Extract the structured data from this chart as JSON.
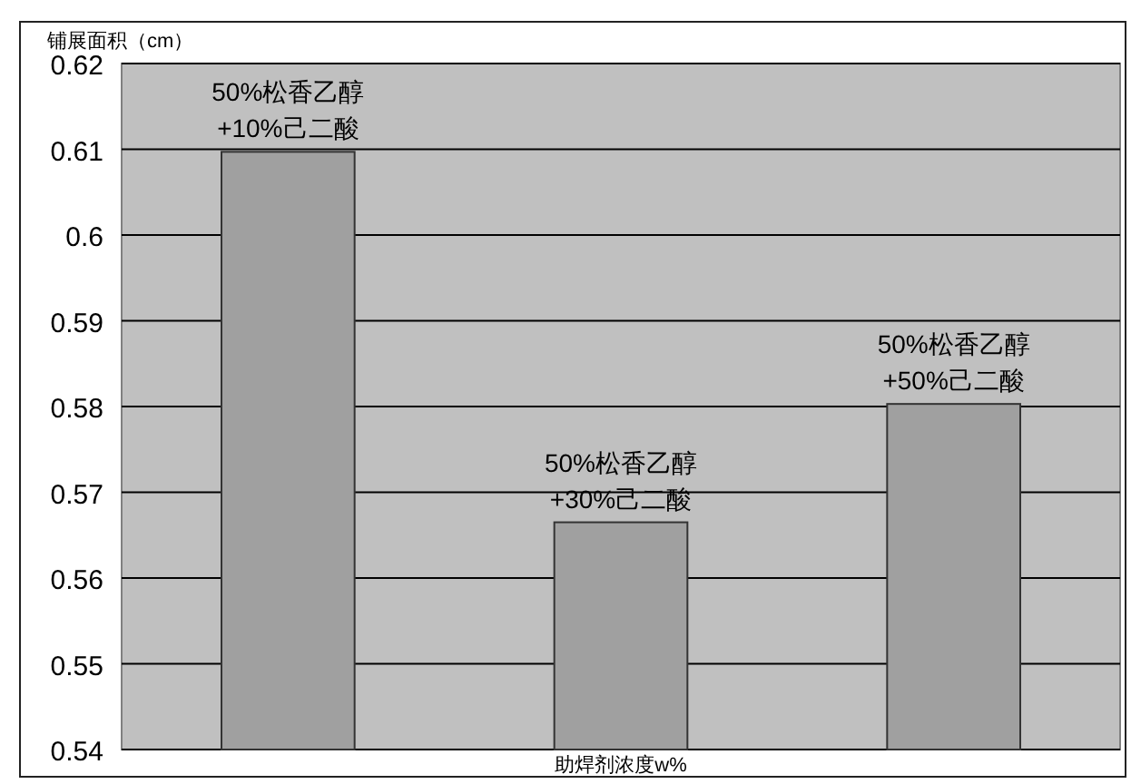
{
  "chart_data": {
    "type": "bar",
    "ylabel": "铺展面积（cm）",
    "xlabel": "助焊剂浓度w%",
    "categories": [
      "50%松香乙醇\n+10%己二酸",
      "50%松香乙醇\n+30%己二酸",
      "50%松香乙醇\n+50%己二酸"
    ],
    "values": [
      0.6097,
      0.5665,
      0.5803
    ],
    "color": "#a0a0a0",
    "ylim": [
      0.54,
      0.62
    ],
    "yticks": [
      0.54,
      0.55,
      0.56,
      0.57,
      0.58,
      0.59,
      0.6,
      0.61,
      0.62
    ],
    "grid": "y"
  }
}
